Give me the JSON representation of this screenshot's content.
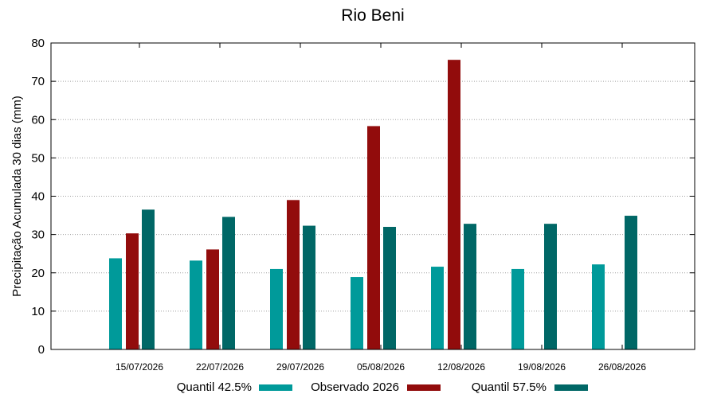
{
  "chart_data": {
    "type": "bar",
    "title": "Rio Beni",
    "xlabel": "",
    "ylabel": "Precipitação Acumulada 30 dias (mm)",
    "ylim": [
      0,
      80
    ],
    "yticks": [
      0,
      10,
      20,
      30,
      40,
      50,
      60,
      70,
      80
    ],
    "grid": "horizontal dotted",
    "legend_position": "bottom",
    "categories": [
      "15/07/2026",
      "22/07/2026",
      "29/07/2026",
      "05/08/2026",
      "12/08/2026",
      "19/08/2026",
      "26/08/2026"
    ],
    "series": [
      {
        "name": "Quantil 42.5%",
        "color": "#009a9a",
        "values": [
          23.8,
          23.2,
          21.0,
          18.9,
          21.6,
          21.0,
          22.2
        ]
      },
      {
        "name": "Observado 2026",
        "color": "#920c0c",
        "values": [
          30.3,
          26.1,
          39.0,
          58.3,
          75.6,
          null,
          null
        ]
      },
      {
        "name": "Quantil 57.5%",
        "color": "#006766",
        "values": [
          36.5,
          34.6,
          32.3,
          32.0,
          32.8,
          32.8,
          34.9
        ]
      }
    ]
  }
}
